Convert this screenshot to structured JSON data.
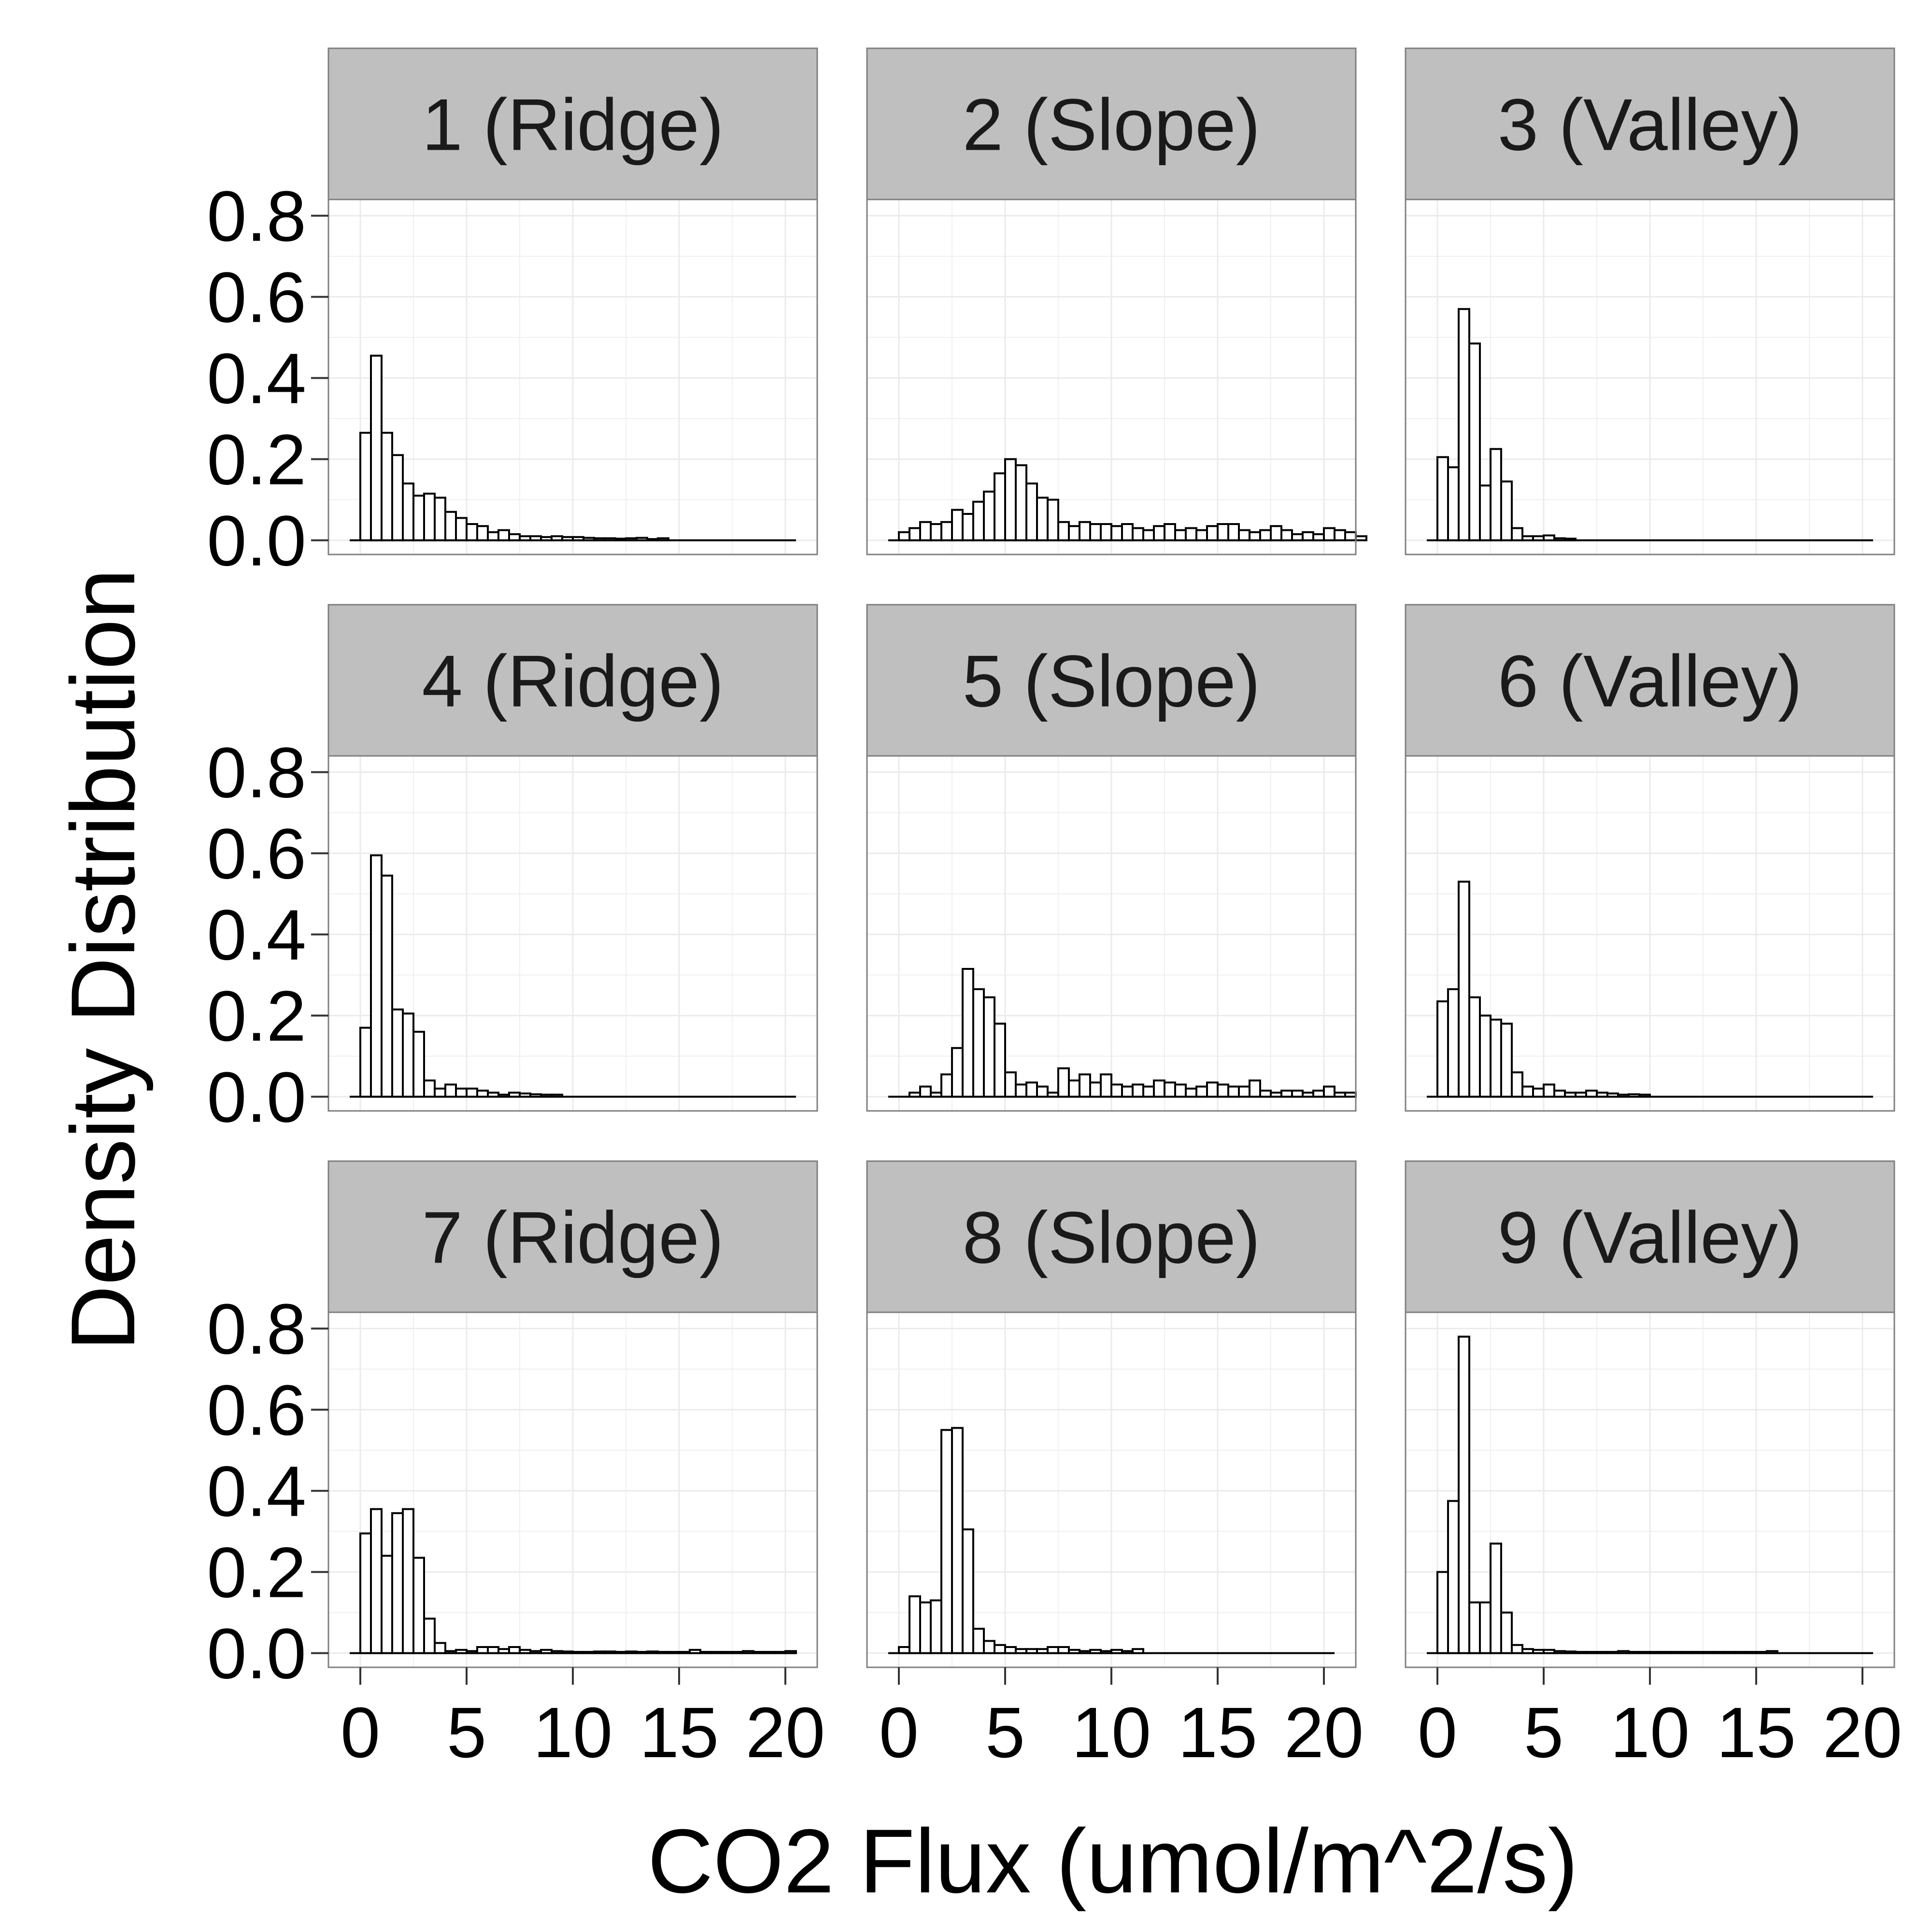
{
  "chart_data": {
    "type": "bar",
    "subtype": "faceted-histogram",
    "xlabel": "CO2 Flux (umol/m^2/s)",
    "ylabel": "Density Distribution",
    "xlim": [
      -1.5,
      21.5
    ],
    "ylim": [
      -0.035,
      0.84
    ],
    "x_ticks": [
      0,
      5,
      10,
      15,
      20
    ],
    "x_tick_labels": [
      "0",
      "5",
      "10",
      "15",
      "20"
    ],
    "y_ticks": [
      0.0,
      0.2,
      0.4,
      0.6,
      0.8
    ],
    "y_tick_labels": [
      "0.0",
      "0.2",
      "0.4",
      "0.6",
      "0.8"
    ],
    "grid": true,
    "bin_width": 0.5,
    "bin_start": 0,
    "colors": {
      "bar_fill": "#ffffff",
      "bar_stroke": "#000000",
      "strip_fill": "#bfbfbf",
      "panel_border": "#7f7f7f",
      "grid": "#ebebeb"
    },
    "facets": [
      {
        "label": "1 (Ridge)",
        "x_range": [
          -0.5,
          20.5
        ],
        "values": [
          0.265,
          0.455,
          0.265,
          0.21,
          0.14,
          0.11,
          0.115,
          0.105,
          0.07,
          0.055,
          0.04,
          0.035,
          0.02,
          0.025,
          0.015,
          0.01,
          0.01,
          0.008,
          0.01,
          0.008,
          0.008,
          0.006,
          0.005,
          0.005,
          0.004,
          0.005,
          0.006,
          0.003,
          0.005
        ]
      },
      {
        "label": "2 (Slope)",
        "x_range": [
          -0.5,
          20.5
        ],
        "values": [
          0.02,
          0.03,
          0.045,
          0.04,
          0.045,
          0.075,
          0.065,
          0.095,
          0.12,
          0.165,
          0.2,
          0.185,
          0.14,
          0.105,
          0.1,
          0.045,
          0.035,
          0.045,
          0.04,
          0.04,
          0.035,
          0.04,
          0.03,
          0.025,
          0.035,
          0.04,
          0.025,
          0.03,
          0.025,
          0.035,
          0.04,
          0.04,
          0.025,
          0.02,
          0.025,
          0.035,
          0.025,
          0.015,
          0.02,
          0.015,
          0.03,
          0.025,
          0.02,
          0.01
        ]
      },
      {
        "label": "3 (Valley)",
        "x_range": [
          -0.5,
          20.5
        ],
        "values": [
          0.205,
          0.18,
          0.57,
          0.485,
          0.135,
          0.225,
          0.145,
          0.03,
          0.01,
          0.01,
          0.012,
          0.005,
          0.004
        ]
      },
      {
        "label": "4 (Ridge)",
        "x_range": [
          -0.5,
          20.5
        ],
        "values": [
          0.17,
          0.595,
          0.545,
          0.215,
          0.205,
          0.16,
          0.04,
          0.02,
          0.03,
          0.02,
          0.02,
          0.015,
          0.01,
          0.005,
          0.01,
          0.008,
          0.006,
          0.005,
          0.005
        ]
      },
      {
        "label": "5 (Slope)",
        "x_range": [
          -0.5,
          20.5
        ],
        "values": [
          0.0,
          0.01,
          0.025,
          0.01,
          0.055,
          0.12,
          0.315,
          0.265,
          0.245,
          0.18,
          0.06,
          0.03,
          0.035,
          0.025,
          0.01,
          0.07,
          0.04,
          0.055,
          0.035,
          0.055,
          0.03,
          0.025,
          0.03,
          0.025,
          0.04,
          0.035,
          0.03,
          0.02,
          0.025,
          0.035,
          0.03,
          0.025,
          0.025,
          0.04,
          0.015,
          0.01,
          0.015,
          0.015,
          0.01,
          0.015,
          0.025,
          0.01,
          0.01
        ]
      },
      {
        "label": "6 (Valley)",
        "x_range": [
          -0.5,
          20.5
        ],
        "values": [
          0.235,
          0.265,
          0.53,
          0.245,
          0.2,
          0.19,
          0.18,
          0.06,
          0.025,
          0.02,
          0.03,
          0.015,
          0.01,
          0.01,
          0.015,
          0.01,
          0.008,
          0.005,
          0.006,
          0.005
        ]
      },
      {
        "label": "7 (Ridge)",
        "x_range": [
          -0.5,
          20.5
        ],
        "values": [
          0.295,
          0.355,
          0.24,
          0.345,
          0.355,
          0.235,
          0.085,
          0.025,
          0.005,
          0.008,
          0.005,
          0.015,
          0.015,
          0.01,
          0.015,
          0.008,
          0.005,
          0.008,
          0.005,
          0.004,
          0.003,
          0.003,
          0.004,
          0.004,
          0.003,
          0.004,
          0.003,
          0.004,
          0.003,
          0.003,
          0.003,
          0.008,
          0.003,
          0.003,
          0.003,
          0.003,
          0.005,
          0.003,
          0.003,
          0.003,
          0.005
        ]
      },
      {
        "label": "8 (Slope)",
        "x_range": [
          -0.5,
          20.5
        ],
        "values": [
          0.015,
          0.14,
          0.125,
          0.13,
          0.55,
          0.555,
          0.305,
          0.06,
          0.03,
          0.02,
          0.015,
          0.01,
          0.01,
          0.01,
          0.015,
          0.015,
          0.008,
          0.005,
          0.008,
          0.005,
          0.008,
          0.005,
          0.01
        ]
      },
      {
        "label": "9 (Valley)",
        "x_range": [
          -0.5,
          20.5
        ],
        "values": [
          0.2,
          0.375,
          0.78,
          0.125,
          0.125,
          0.27,
          0.1,
          0.02,
          0.01,
          0.008,
          0.008,
          0.005,
          0.004,
          0.003,
          0.003,
          0.003,
          0.003,
          0.005,
          0.003,
          0.003,
          0.003,
          0.003,
          0.003,
          0.003,
          0.003,
          0.003,
          0.003,
          0.003,
          0.003,
          0.003,
          0.003,
          0.005
        ]
      }
    ]
  }
}
